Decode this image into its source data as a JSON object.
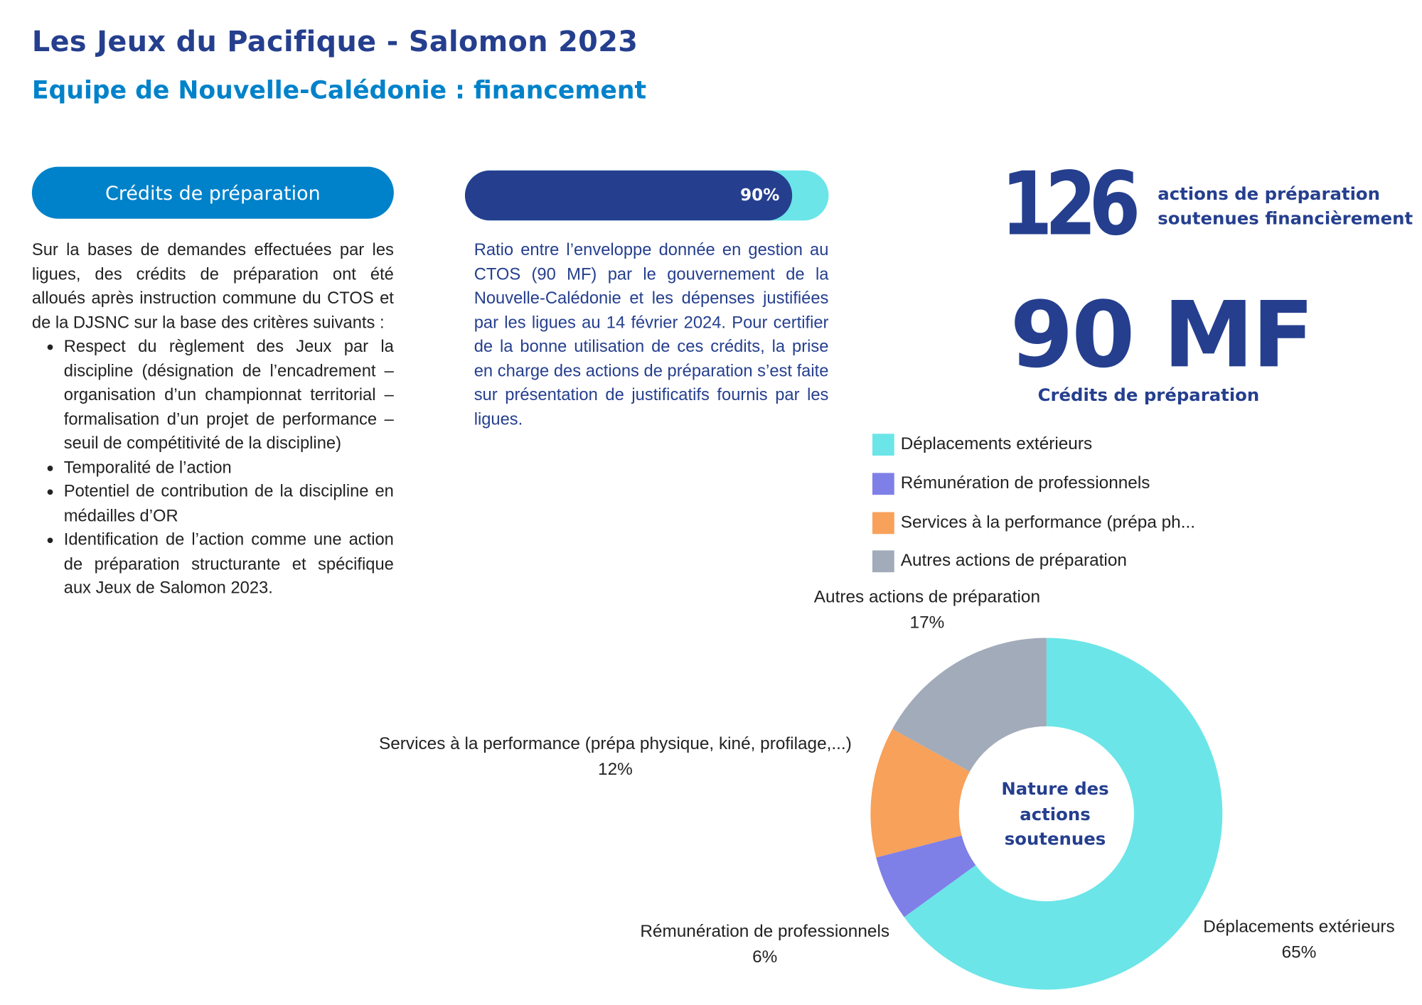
{
  "header": {
    "title": "Les Jeux du Pacifique - Salomon 2023",
    "subtitle": "Equipe de Nouvelle-Calédonie : financement"
  },
  "section_button": "Crédits de préparation",
  "left_text": {
    "intro": "Sur la bases de demandes effectuées par les ligues, des crédits de préparation ont été alloués après instruction commune du CTOS et de la DJSNC sur la base des critères suivants :",
    "bullets": [
      "Respect du règlement des Jeux par la discipline (désignation de l’encadrement – organisation d’un championnat territorial – formalisation d’un projet de performance – seuil de compétitivité de la discipline)",
      "Temporalité de l’action",
      "Potentiel de contribution de la discipline en médailles d’OR",
      "Identification de l’action comme une action de préparation structurante et spécifique aux Jeux de Salomon 2023."
    ]
  },
  "progress": {
    "value": 90,
    "label": "90%",
    "fill_color": "#253f8e",
    "track_color": "#6be5e8"
  },
  "middle_text": "Ratio entre l’enveloppe  donnée en gestion au CTOS (90 MF) par le gouvernement de la Nouvelle-Calédonie et les dépenses justifiées par les ligues au 14 février 2024. Pour certifier de la bonne utilisation de ces crédits, la prise en charge des actions de préparation s’est faite sur présentation  de justificatifs fournis par les ligues.",
  "kpis": {
    "actions_value": "126",
    "actions_line1": "actions de préparation",
    "actions_line2": "soutenues financièrement",
    "credits_value": "90 MF",
    "credits_label": "Crédits de préparation"
  },
  "chart_data": {
    "type": "pie",
    "donut": true,
    "center_label": [
      "Nature des",
      "actions",
      "soutenues"
    ],
    "legend_position": "top",
    "legend": [
      "Déplacements extérieurs",
      "Rémunération de professionnels",
      "Services à la performance (prépa ph...",
      "Autres actions de préparation"
    ],
    "slices": [
      {
        "name": "Déplacements extérieurs",
        "value": 65,
        "label": "65%",
        "color": "#6be5e8"
      },
      {
        "name": "Rémunération de professionnels",
        "value": 6,
        "label": "6%",
        "color": "#7f7fe8"
      },
      {
        "name": "Services à la performance (prépa physique, kiné, profilage,...)",
        "value": 12,
        "label": "12%",
        "color": "#f8a15a"
      },
      {
        "name": "Autres actions de préparation",
        "value": 17,
        "label": "17%",
        "color": "#a2abb9"
      }
    ]
  }
}
